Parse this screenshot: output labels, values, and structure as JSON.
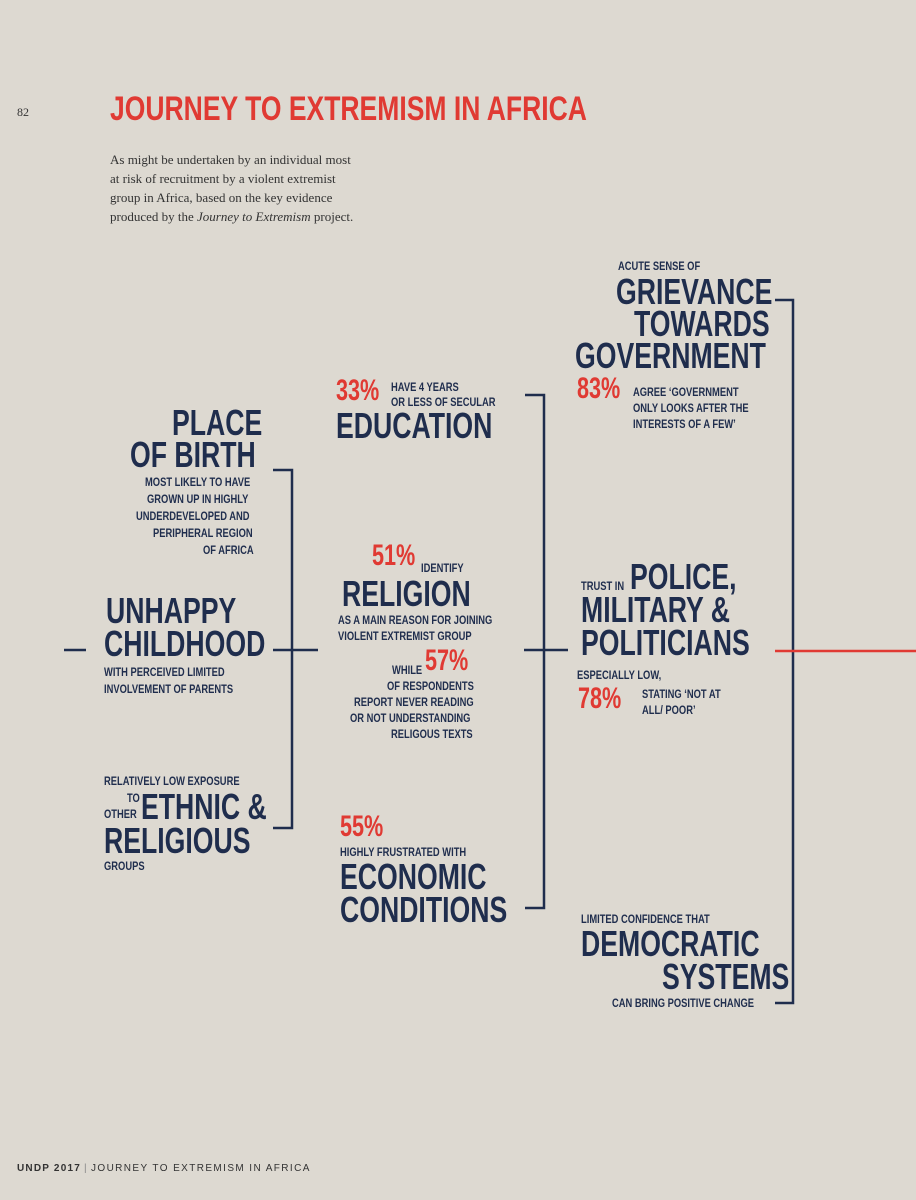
{
  "page_number": "82",
  "title": "JOURNEY TO EXTREMISM IN AFRICA",
  "intro": {
    "line1": "As might be undertaken by an individual most",
    "line2": "at risk of recruitment by a violent extremist",
    "line3": "group in Africa, based on the key evidence",
    "line4_prefix": "produced by the ",
    "line4_italic": "Journey to Extremism",
    "line4_suffix": " project."
  },
  "column1": {
    "birth": {
      "heading1": "PLACE",
      "heading2": "OF BIRTH",
      "desc1": "MOST LIKELY TO HAVE",
      "desc2": "GROWN UP IN HIGHLY",
      "desc3": "UNDERDEVELOPED AND",
      "desc4": "PERIPHERAL REGION",
      "desc5": "OF AFRICA"
    },
    "childhood": {
      "heading1": "UNHAPPY",
      "heading2": "CHILDHOOD",
      "desc1": "WITH PERCEIVED LIMITED",
      "desc2": "INVOLVEMENT OF PARENTS"
    },
    "ethnic": {
      "pre": "RELATIVELY LOW EXPOSURE",
      "to": "TO",
      "other": "OTHER",
      "heading1": "ETHNIC &",
      "heading2": "RELIGIOUS",
      "post": "GROUPS"
    }
  },
  "column2": {
    "education": {
      "pct": "33%",
      "desc1": "HAVE 4 YEARS",
      "desc2": "OR LESS OF SECULAR",
      "heading": "EDUCATION"
    },
    "religion": {
      "pct": "51%",
      "identify": "IDENTIFY",
      "heading": "RELIGION",
      "desc1": "AS A MAIN REASON FOR JOINING",
      "desc2": "VIOLENT EXTREMIST GROUP",
      "while": "WHILE",
      "pct2": "57%",
      "desc3": "OF RESPONDENTS",
      "desc4": "REPORT NEVER READING",
      "desc5": "OR NOT UNDERSTANDING",
      "desc6": "RELIGOUS TEXTS"
    },
    "economic": {
      "pct": "55%",
      "desc": "HIGHLY FRUSTRATED WITH",
      "heading1": "ECONOMIC",
      "heading2": "CONDITIONS"
    }
  },
  "column3": {
    "grievance": {
      "pre": "ACUTE SENSE OF",
      "heading1": "GRIEVANCE",
      "heading2": "TOWARDS",
      "heading3": "GOVERNMENT",
      "pct": "83%",
      "desc1": "AGREE ‘GOVERNMENT",
      "desc2": "ONLY LOOKS AFTER THE",
      "desc3": "INTERESTS OF A FEW’"
    },
    "trust": {
      "pre": "TRUST IN",
      "heading1": "POLICE,",
      "heading2": "MILITARY &",
      "heading3": "POLITICIANS",
      "desc1": "ESPECIALLY LOW,",
      "pct": "78%",
      "desc2": "STATING ‘NOT AT",
      "desc3": "ALL/ POOR’"
    },
    "democratic": {
      "pre": "LIMITED CONFIDENCE THAT",
      "heading1": "DEMOCRATIC",
      "heading2": "SYSTEMS",
      "post": "CAN BRING POSITIVE CHANGE"
    }
  },
  "footer": {
    "org": "UNDP 2017",
    "separator": "|",
    "text": "JOURNEY TO EXTREMISM IN AFRICA"
  },
  "colors": {
    "background": "#ddd9d1",
    "navy": "#1f2d4d",
    "accent_red": "#e03a33"
  }
}
